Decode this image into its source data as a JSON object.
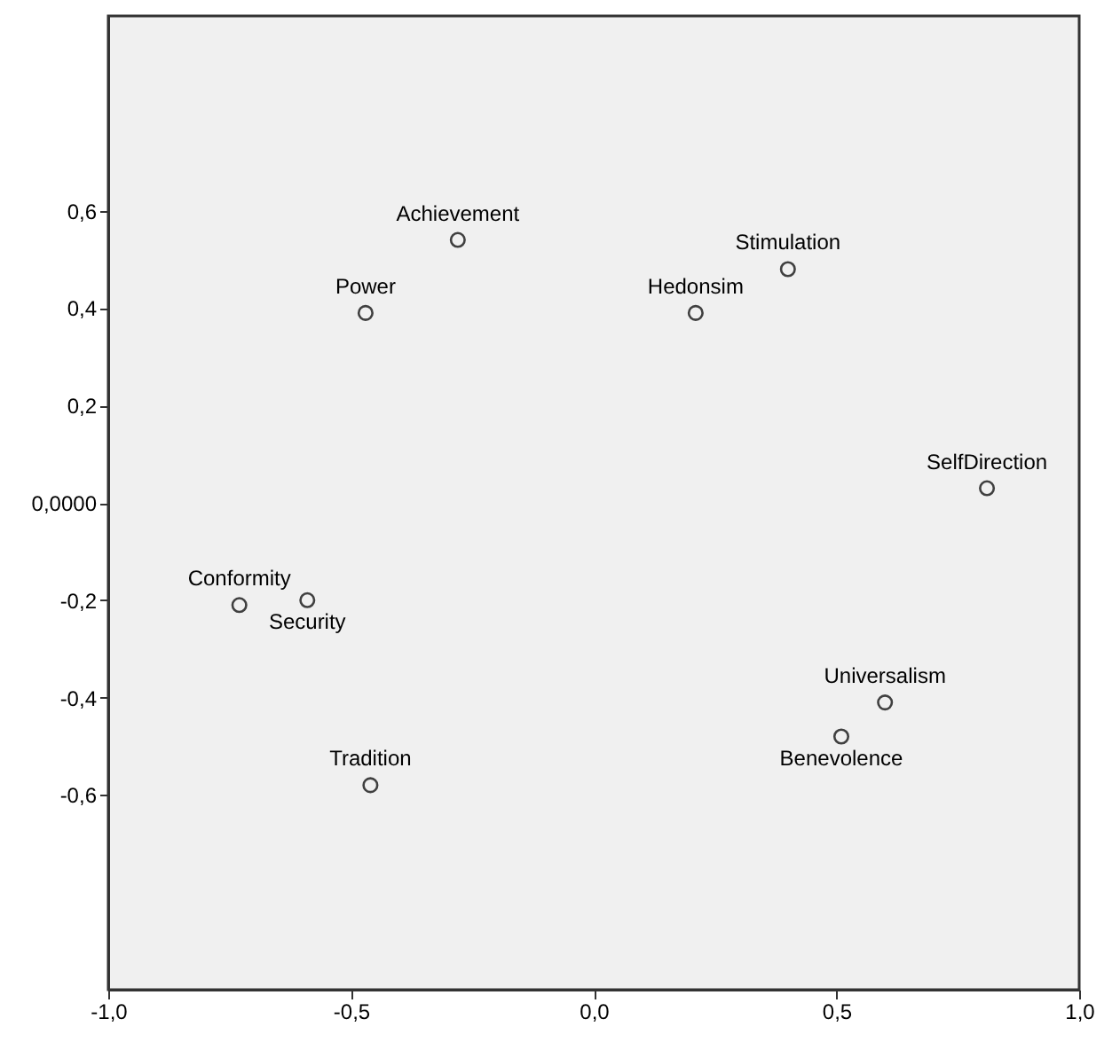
{
  "chart_data": {
    "type": "scatter",
    "x": [
      -0.28,
      -0.47,
      0.4,
      0.21,
      0.81,
      -0.73,
      -0.59,
      -0.46,
      0.6,
      0.51
    ],
    "series": [
      {
        "color": "#404040",
        "values": [
          0.54,
          0.39,
          0.48,
          0.39,
          0.03,
          -0.21,
          -0.2,
          -0.58,
          -0.41,
          -0.48
        ]
      }
    ],
    "annotations": [
      {
        "text": "Achievement",
        "x": -0.28,
        "y": 0.54
      },
      {
        "text": "Power",
        "x": -0.47,
        "y": 0.39
      },
      {
        "text": "Stimulation",
        "x": 0.4,
        "y": 0.48
      },
      {
        "text": "Hedonsim",
        "x": 0.21,
        "y": 0.39
      },
      {
        "text": "SelfDirection",
        "x": 0.81,
        "y": 0.03
      },
      {
        "text": "Conformity",
        "x": -0.73,
        "y": -0.21
      },
      {
        "text": "Security",
        "x": -0.59,
        "y": -0.2
      },
      {
        "text": "Tradition",
        "x": -0.46,
        "y": -0.58
      },
      {
        "text": "Universalism",
        "x": 0.6,
        "y": -0.41
      },
      {
        "text": "Benevolence",
        "x": 0.51,
        "y": -0.48
      }
    ],
    "xlim": [
      -1,
      1
    ],
    "ylim": [
      -1,
      1
    ],
    "xticks": [
      {
        "value": -1,
        "label": "-1,0"
      },
      {
        "value": -0.5,
        "label": "-0,5"
      },
      {
        "value": 0,
        "label": "0,0"
      },
      {
        "value": 0.5,
        "label": "0,5"
      },
      {
        "value": 1,
        "label": "1,0"
      }
    ],
    "yticks": [
      {
        "value": 0.6,
        "label": "0,6"
      },
      {
        "value": 0.4,
        "label": "0,4"
      },
      {
        "value": 0.2,
        "label": "0,2"
      },
      {
        "value": 0,
        "label": "0,0000"
      },
      {
        "value": -0.2,
        "label": "-0,2"
      },
      {
        "value": -0.4,
        "label": "-0,4"
      },
      {
        "value": -0.6,
        "label": "-0,6"
      }
    ],
    "marker": "circle",
    "grid": false
  }
}
